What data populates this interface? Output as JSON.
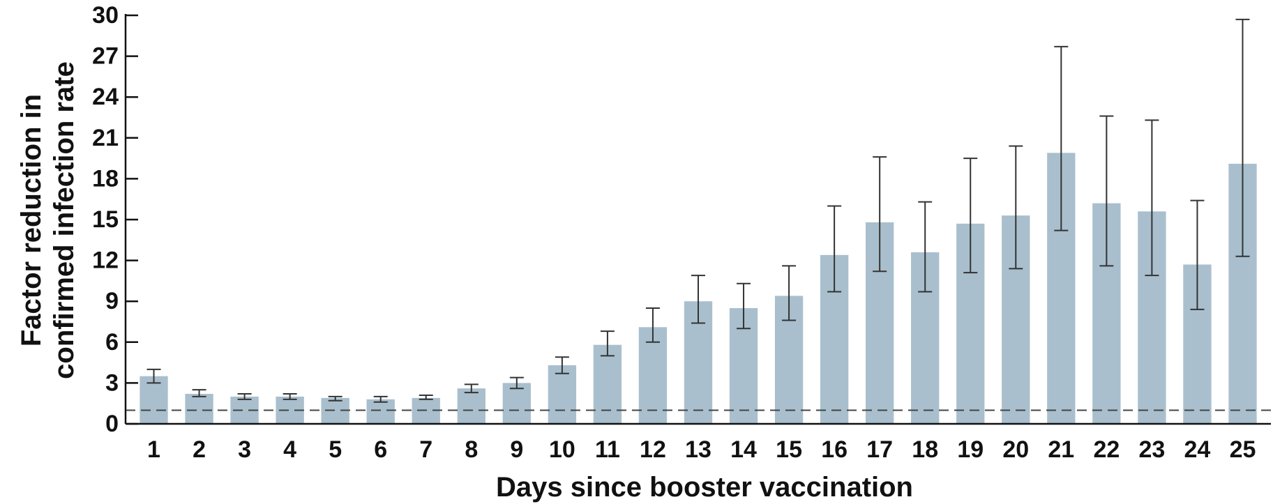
{
  "colors": {
    "bar": "#a9bfcd",
    "error_bar": "#333333",
    "axis": "#111111",
    "reference_line": "#444444"
  },
  "chart_data": {
    "type": "bar",
    "title": "",
    "xlabel": "Days since booster vaccination",
    "ylabel_lines": [
      "Factor reduction in",
      "confirmed infection rate"
    ],
    "categories": [
      "1",
      "2",
      "3",
      "4",
      "5",
      "6",
      "7",
      "8",
      "9",
      "10",
      "11",
      "12",
      "13",
      "14",
      "15",
      "16",
      "17",
      "18",
      "19",
      "20",
      "21",
      "22",
      "23",
      "24",
      "25"
    ],
    "values": [
      3.5,
      2.2,
      2.0,
      2.0,
      1.9,
      1.8,
      1.9,
      2.6,
      3.0,
      4.3,
      5.8,
      7.1,
      9.0,
      8.5,
      9.4,
      12.4,
      14.8,
      12.6,
      14.7,
      15.3,
      19.9,
      16.2,
      15.6,
      11.7,
      19.1
    ],
    "error_lower": [
      3.0,
      2.0,
      1.8,
      1.8,
      1.7,
      1.6,
      1.8,
      2.3,
      2.6,
      3.7,
      5.0,
      6.0,
      7.4,
      7.0,
      7.6,
      9.7,
      11.2,
      9.7,
      11.1,
      11.4,
      14.2,
      11.6,
      10.9,
      8.4,
      12.3
    ],
    "error_upper": [
      4.0,
      2.5,
      2.2,
      2.2,
      2.0,
      2.0,
      2.1,
      2.9,
      3.4,
      4.9,
      6.8,
      8.5,
      10.9,
      10.3,
      11.6,
      16.0,
      19.6,
      16.3,
      19.5,
      20.4,
      27.7,
      22.6,
      22.3,
      16.4,
      29.7
    ],
    "reference_line_y": 1,
    "yticks": [
      "0",
      "3",
      "6",
      "9",
      "12",
      "15",
      "18",
      "21",
      "24",
      "27",
      "30"
    ],
    "ylim": [
      0,
      30
    ],
    "grid": false,
    "legend": "none"
  }
}
